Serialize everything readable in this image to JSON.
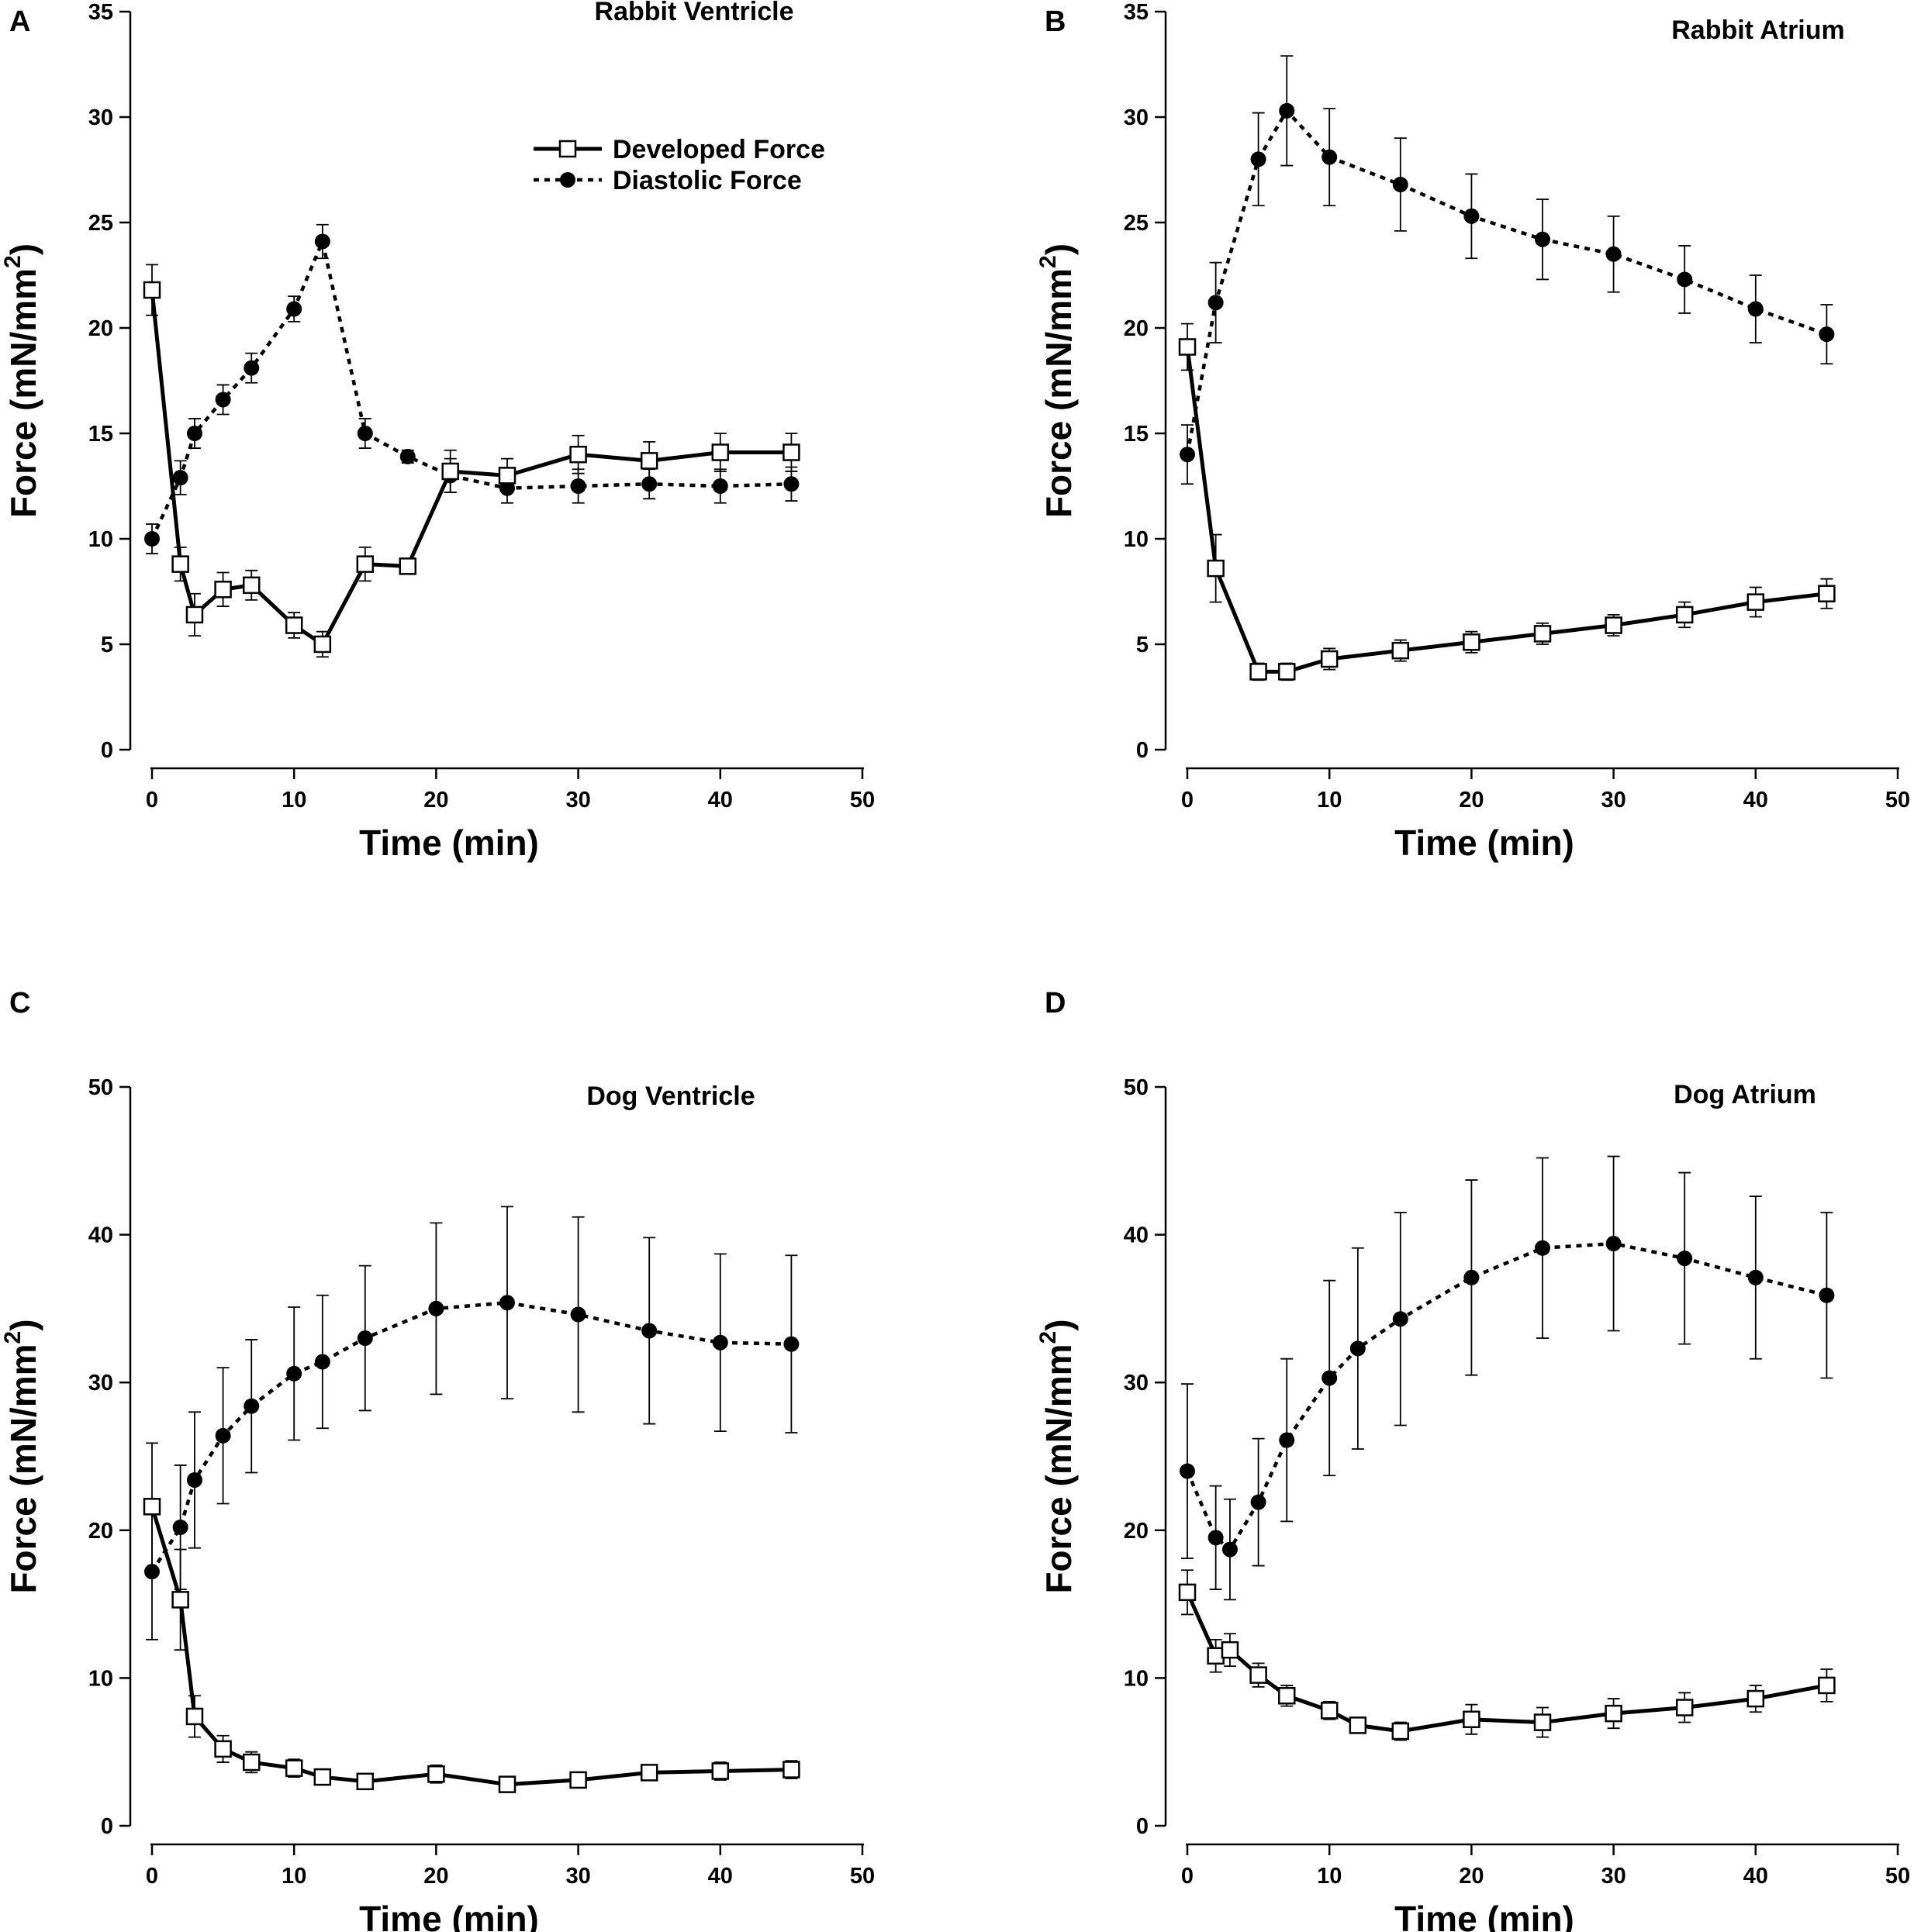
{
  "colors": {
    "ink": "#000000",
    "background": "#ffffff"
  },
  "chart_data": [
    {
      "type": "line",
      "panel_label": "A",
      "title": "Rabbit Ventricle",
      "xlabel": "Time (min)",
      "ylabel": "Force (mN/mm",
      "ylabel_sup": "2",
      "ylabel_close": ")",
      "xlim": [
        0,
        50
      ],
      "ylim": [
        0,
        35
      ],
      "xticks": [
        0,
        10,
        20,
        30,
        40,
        50
      ],
      "yticks": [
        0,
        5,
        10,
        15,
        20,
        25,
        30,
        35
      ],
      "legend": {
        "position": "top-center",
        "entries": [
          "Developed Force",
          "Diastolic Force"
        ]
      },
      "series": [
        {
          "name": "Developed Force",
          "style": "solid",
          "marker": "open-square",
          "x": [
            0,
            2,
            3,
            5,
            7,
            10,
            12,
            15,
            18,
            21,
            25,
            30,
            35,
            40,
            45
          ],
          "y": [
            21.8,
            8.8,
            6.4,
            7.6,
            7.8,
            5.9,
            5.0,
            8.8,
            8.7,
            13.2,
            13.0,
            14.0,
            13.7,
            14.1,
            14.1
          ],
          "err": [
            1.2,
            0.8,
            1.0,
            0.8,
            0.7,
            0.6,
            0.6,
            0.8,
            0.3,
            1.0,
            0.8,
            0.9,
            0.9,
            0.9,
            0.9
          ]
        },
        {
          "name": "Diastolic Force",
          "style": "dotted",
          "marker": "filled-circle",
          "x": [
            0,
            2,
            3,
            5,
            7,
            10,
            12,
            15,
            18,
            21,
            25,
            30,
            35,
            40,
            45
          ],
          "y": [
            10.0,
            12.9,
            15.0,
            16.6,
            18.1,
            20.9,
            24.1,
            15.0,
            13.9,
            13.0,
            12.4,
            12.5,
            12.6,
            12.5,
            12.6
          ],
          "err": [
            0.7,
            0.8,
            0.7,
            0.7,
            0.7,
            0.6,
            0.8,
            0.7,
            0.3,
            0.8,
            0.7,
            0.8,
            0.7,
            0.8,
            0.8
          ]
        }
      ]
    },
    {
      "type": "line",
      "panel_label": "B",
      "title": "Rabbit Atrium",
      "xlabel": "Time (min)",
      "ylabel": "Force (mN/mm",
      "ylabel_sup": "2",
      "ylabel_close": ")",
      "xlim": [
        0,
        50
      ],
      "ylim": [
        0,
        35
      ],
      "xticks": [
        0,
        10,
        20,
        30,
        40,
        50
      ],
      "yticks": [
        0,
        5,
        10,
        15,
        20,
        25,
        30,
        35
      ],
      "series": [
        {
          "name": "Developed Force",
          "style": "solid",
          "marker": "open-square",
          "x": [
            0,
            2,
            5,
            7,
            10,
            15,
            20,
            25,
            30,
            35,
            40,
            45
          ],
          "y": [
            19.1,
            8.6,
            3.7,
            3.7,
            4.3,
            4.7,
            5.1,
            5.5,
            5.9,
            6.4,
            7.0,
            7.4
          ],
          "err": [
            1.1,
            1.6,
            0.4,
            0.4,
            0.5,
            0.5,
            0.5,
            0.5,
            0.5,
            0.6,
            0.7,
            0.7
          ]
        },
        {
          "name": "Diastolic Force",
          "style": "dotted",
          "marker": "filled-circle",
          "x": [
            0,
            2,
            5,
            7,
            10,
            15,
            20,
            25,
            30,
            35,
            40,
            45
          ],
          "y": [
            14.0,
            21.2,
            28.0,
            30.3,
            28.1,
            26.8,
            25.3,
            24.2,
            23.5,
            22.3,
            20.9,
            19.7
          ],
          "err": [
            1.4,
            1.9,
            2.2,
            2.6,
            2.3,
            2.2,
            2.0,
            1.9,
            1.8,
            1.6,
            1.6,
            1.4
          ]
        }
      ]
    },
    {
      "type": "line",
      "panel_label": "C",
      "title": "Dog Ventricle",
      "xlabel": "Time (min)",
      "ylabel": "Force (mN/mm",
      "ylabel_sup": "2",
      "ylabel_close": ")",
      "xlim": [
        0,
        50
      ],
      "ylim": [
        0,
        50
      ],
      "xticks": [
        0,
        10,
        20,
        30,
        40,
        50
      ],
      "yticks": [
        0,
        10,
        20,
        30,
        40,
        50
      ],
      "series": [
        {
          "name": "Developed Force",
          "style": "solid",
          "marker": "open-square",
          "x": [
            0,
            2,
            3,
            5,
            7,
            10,
            12,
            15,
            20,
            25,
            30,
            35,
            40,
            45
          ],
          "y": [
            21.6,
            15.3,
            7.4,
            5.2,
            4.3,
            3.9,
            3.3,
            3.0,
            3.5,
            2.8,
            3.1,
            3.6,
            3.7,
            3.8
          ],
          "err": [
            4.3,
            3.4,
            1.4,
            0.9,
            0.7,
            0.6,
            0.5,
            0.4,
            0.6,
            0.4,
            0.4,
            0.5,
            0.6,
            0.6
          ]
        },
        {
          "name": "Diastolic Force",
          "style": "dotted",
          "marker": "filled-circle",
          "x": [
            0,
            2,
            3,
            5,
            7,
            10,
            12,
            15,
            20,
            25,
            30,
            35,
            40,
            45
          ],
          "y": [
            17.2,
            20.2,
            23.4,
            26.4,
            28.4,
            30.6,
            31.4,
            33.0,
            35.0,
            35.4,
            34.6,
            33.5,
            32.7,
            32.6
          ],
          "err": [
            4.6,
            4.2,
            4.6,
            4.6,
            4.5,
            4.5,
            4.5,
            4.9,
            5.8,
            6.5,
            6.6,
            6.3,
            6.0,
            6.0
          ]
        }
      ]
    },
    {
      "type": "line",
      "panel_label": "D",
      "title": "Dog Atrium",
      "xlabel": "Time (min)",
      "ylabel": "Force (mN/mm",
      "ylabel_sup": "2",
      "ylabel_close": ")",
      "xlim": [
        0,
        50
      ],
      "ylim": [
        0,
        50
      ],
      "xticks": [
        0,
        10,
        20,
        30,
        40,
        50
      ],
      "yticks": [
        0,
        10,
        20,
        30,
        40,
        50
      ],
      "series": [
        {
          "name": "Developed Force",
          "style": "solid",
          "marker": "open-square",
          "x": [
            0,
            2,
            3,
            5,
            7,
            10,
            12,
            15,
            20,
            25,
            30,
            35,
            40,
            45
          ],
          "y": [
            15.8,
            11.5,
            11.9,
            10.2,
            8.8,
            7.8,
            6.8,
            6.4,
            7.2,
            7.0,
            7.6,
            8.0,
            8.6,
            9.5
          ],
          "err": [
            1.5,
            1.1,
            1.1,
            0.8,
            0.7,
            0.6,
            0.5,
            0.6,
            1.0,
            1.0,
            1.0,
            1.0,
            0.9,
            1.1
          ]
        },
        {
          "name": "Diastolic Force",
          "style": "dotted",
          "marker": "filled-circle",
          "x": [
            0,
            2,
            3,
            5,
            7,
            10,
            12,
            15,
            20,
            25,
            30,
            35,
            40,
            45
          ],
          "y": [
            24.0,
            19.5,
            18.7,
            21.9,
            26.1,
            30.3,
            32.3,
            34.3,
            37.1,
            39.1,
            39.4,
            38.4,
            37.1,
            35.9
          ],
          "err": [
            5.9,
            3.5,
            3.4,
            4.3,
            5.5,
            6.6,
            6.8,
            7.2,
            6.6,
            6.1,
            5.9,
            5.8,
            5.5,
            5.6
          ]
        }
      ]
    }
  ]
}
